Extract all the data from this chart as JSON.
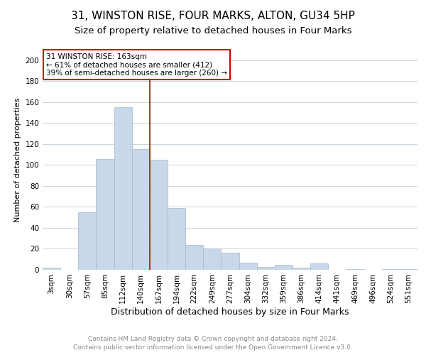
{
  "title": "31, WINSTON RISE, FOUR MARKS, ALTON, GU34 5HP",
  "subtitle": "Size of property relative to detached houses in Four Marks",
  "xlabel": "Distribution of detached houses by size in Four Marks",
  "ylabel": "Number of detached properties",
  "bar_color": "#c8d8ea",
  "bar_edge_color": "#a0b8cc",
  "bin_labels": [
    "3sqm",
    "30sqm",
    "57sqm",
    "85sqm",
    "112sqm",
    "140sqm",
    "167sqm",
    "194sqm",
    "222sqm",
    "249sqm",
    "277sqm",
    "304sqm",
    "332sqm",
    "359sqm",
    "386sqm",
    "414sqm",
    "441sqm",
    "469sqm",
    "496sqm",
    "524sqm",
    "551sqm"
  ],
  "bar_heights": [
    2,
    0,
    55,
    106,
    155,
    115,
    105,
    59,
    24,
    20,
    16,
    7,
    3,
    5,
    2,
    6,
    0,
    1,
    0,
    1,
    1
  ],
  "vline_x_index": 6,
  "vline_color": "#cc0000",
  "annotation_title": "31 WINSTON RISE: 163sqm",
  "annotation_line1": "← 61% of detached houses are smaller (412)",
  "annotation_line2": "39% of semi-detached houses are larger (260) →",
  "ylim": [
    0,
    210
  ],
  "yticks": [
    0,
    20,
    40,
    60,
    80,
    100,
    120,
    140,
    160,
    180,
    200
  ],
  "footer1": "Contains HM Land Registry data © Crown copyright and database right 2024.",
  "footer2": "Contains public sector information licensed under the Open Government Licence v3.0.",
  "background_color": "#ffffff",
  "grid_color": "#c8d4e0",
  "title_fontsize": 11,
  "subtitle_fontsize": 9.5,
  "xlabel_fontsize": 9,
  "ylabel_fontsize": 8,
  "tick_fontsize": 7.5,
  "footer_fontsize": 6.5,
  "annotation_fontsize": 7.5
}
